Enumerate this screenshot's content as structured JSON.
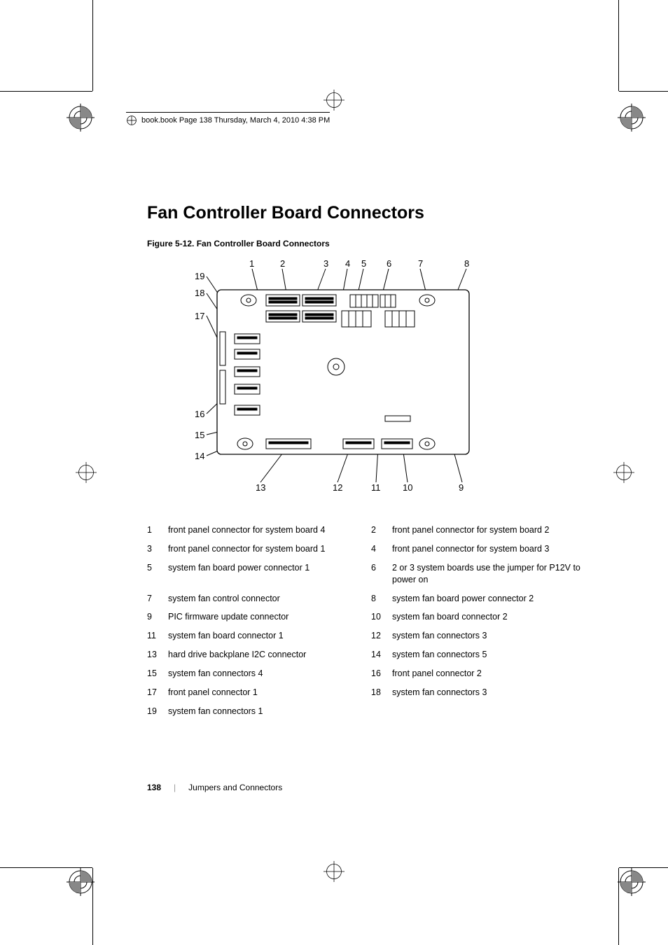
{
  "header": {
    "text": "book.book  Page 138  Thursday, March 4, 2010  4:38 PM"
  },
  "heading": "Fan Controller Board Connectors",
  "figure_caption": "Figure 5-12.    Fan Controller Board Connectors",
  "callouts": {
    "top": [
      "1",
      "2",
      "3",
      "4",
      "5",
      "6",
      "7",
      "8"
    ],
    "left": [
      "19",
      "18",
      "17",
      "16",
      "15",
      "14"
    ],
    "bottom": [
      "13",
      "12",
      "11",
      "10",
      "9"
    ]
  },
  "legend_rows": [
    [
      {
        "n": "1",
        "t": "front panel connector for system board 4"
      },
      {
        "n": "2",
        "t": "front panel connector for system board 2"
      }
    ],
    [
      {
        "n": "3",
        "t": "front panel connector for system board 1"
      },
      {
        "n": "4",
        "t": "front panel connector for system board 3"
      }
    ],
    [
      {
        "n": "5",
        "t": "system fan board power connector 1"
      },
      {
        "n": "6",
        "t": "2 or 3 system boards use the jumper for P12V to power on"
      }
    ],
    [
      {
        "n": "7",
        "t": "system fan control connector"
      },
      {
        "n": "8",
        "t": "system fan board power connector 2"
      }
    ],
    [
      {
        "n": "9",
        "t": "PIC firmware update connector"
      },
      {
        "n": "10",
        "t": "system fan board connector 2"
      }
    ],
    [
      {
        "n": "11",
        "t": "system fan board connector 1"
      },
      {
        "n": "12",
        "t": "system fan connectors 3"
      }
    ],
    [
      {
        "n": "13",
        "t": "hard drive backplane I2C connector"
      },
      {
        "n": "14",
        "t": "system fan connectors 5"
      }
    ],
    [
      {
        "n": "15",
        "t": "system fan connectors 4"
      },
      {
        "n": "16",
        "t": "front panel connector 2"
      }
    ],
    [
      {
        "n": "17",
        "t": "front panel connector 1"
      },
      {
        "n": "18",
        "t": "system fan connectors 3"
      }
    ],
    [
      {
        "n": "19",
        "t": "system fan connectors 1"
      }
    ]
  ],
  "footer": {
    "page_number": "138",
    "section": "Jumpers and Connectors"
  },
  "colors": {
    "text": "#000000",
    "bg": "#ffffff",
    "sep": "#a0a0a0"
  },
  "diagram": {
    "board_stroke": "#000000",
    "board_fill": "#ffffff"
  }
}
